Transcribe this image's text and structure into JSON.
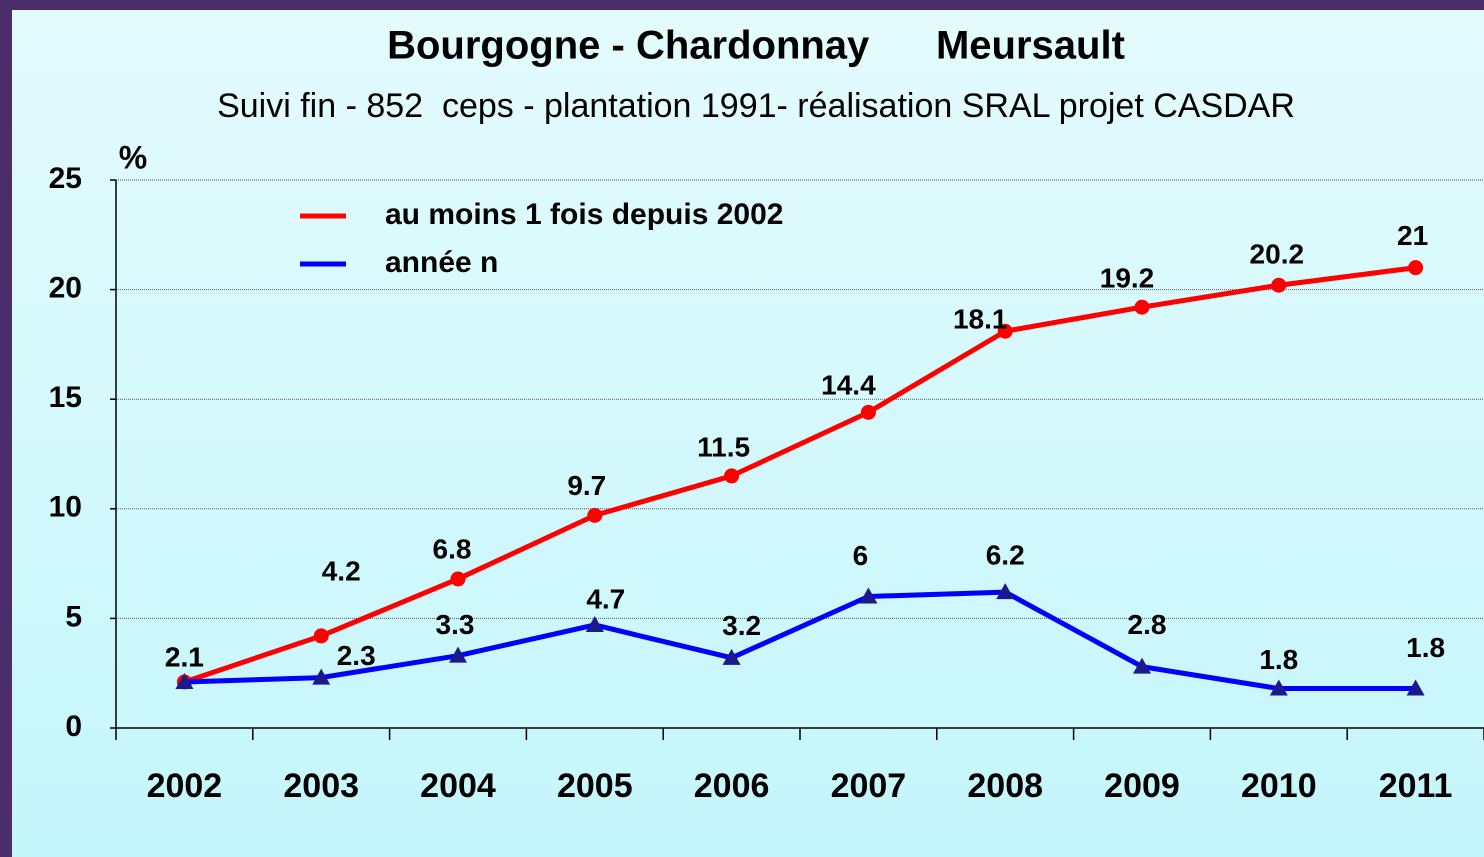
{
  "chart_data": {
    "type": "line",
    "title": "Bourgogne - Chardonnay      Meursault",
    "subtitle": "Suivi fin - 852  ceps - plantation 1991- réalisation SRAL projet CASDAR",
    "y_label": "%",
    "categories": [
      "2002",
      "2003",
      "2004",
      "2005",
      "2006",
      "2007",
      "2008",
      "2009",
      "2010",
      "2011"
    ],
    "series": [
      {
        "name": "au moins 1 fois depuis 2002",
        "color": "#ff0000",
        "marker": "circle",
        "values": [
          2.1,
          4.2,
          6.8,
          9.7,
          11.5,
          14.4,
          18.1,
          19.2,
          20.2,
          21
        ]
      },
      {
        "name": "année n",
        "color": "#0000ff",
        "marker": "triangle",
        "values": [
          2.1,
          2.3,
          3.3,
          4.7,
          3.2,
          6,
          6.2,
          2.8,
          1.8,
          1.8
        ]
      }
    ],
    "ylim": [
      0,
      25
    ],
    "yticks": [
      0,
      5,
      10,
      15,
      20,
      25
    ],
    "grid": true,
    "legend": "upper left"
  }
}
